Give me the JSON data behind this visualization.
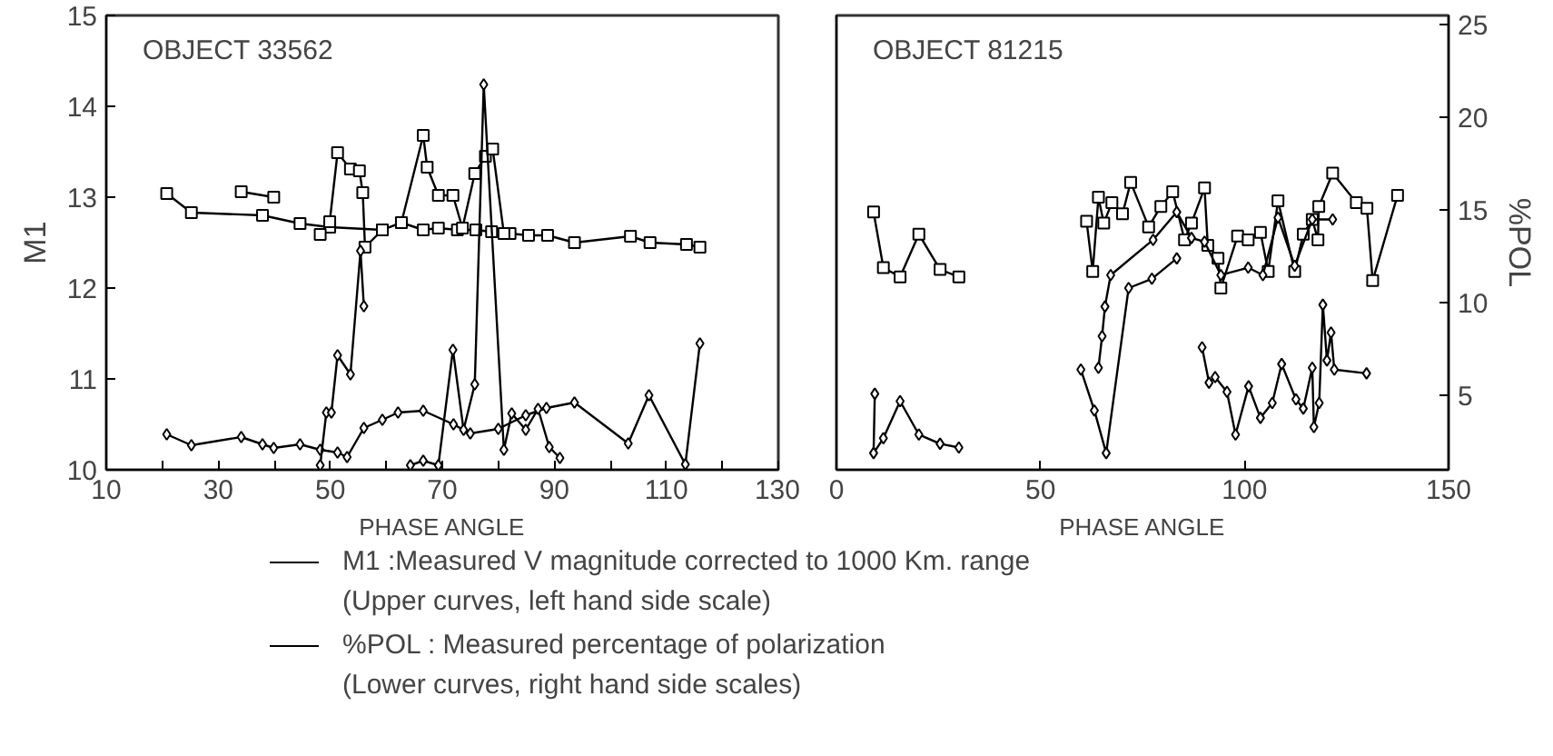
{
  "chart_data": [
    {
      "type": "line",
      "title": "OBJECT 33562",
      "xlabel": "PHASE ANGLE",
      "ylabel": "M1",
      "xlim": [
        10,
        130
      ],
      "ylim": [
        10,
        15
      ],
      "xticks": [
        10,
        {
          "value": 20,
          "label": null
        },
        30,
        {
          "value": 40,
          "label": null
        },
        50,
        {
          "value": 60,
          "label": null
        },
        70,
        {
          "value": 80,
          "label": null
        },
        90,
        {
          "value": 100,
          "label": null
        },
        110,
        {
          "value": 120,
          "label": null
        },
        130
      ],
      "yticks": [
        10,
        11,
        12,
        13,
        14,
        15
      ],
      "series": [
        {
          "color": "#000000",
          "marker": "square",
          "x": [
            20.8,
            25.2,
            37.9,
            44.6,
            49.9,
            59.3,
            62.7,
            66.6,
            69.3,
            72.7,
            76,
            78.8,
            82.1,
            85.4,
            88.8,
            93.6,
            103.6,
            107.1,
            113.6,
            116
          ],
          "values": [
            13.04,
            12.83,
            12.8,
            12.71,
            12.67,
            12.64,
            12.72,
            12.64,
            12.66,
            12.64,
            12.64,
            12.62,
            12.6,
            12.58,
            12.58,
            12.5,
            12.57,
            12.5,
            12.48,
            12.45
          ]
        },
        {
          "color": "#000000",
          "marker": "square",
          "x": [
            34.1,
            39.9
          ],
          "values": [
            13.06,
            13.0
          ]
        },
        {
          "color": "#000000",
          "marker": "square",
          "x": [
            48.2,
            49.9,
            51.3,
            53.6,
            55.2,
            55.8,
            56.2,
            59.3,
            62.7,
            66.6,
            67.3,
            69.3,
            71.9,
            73.6,
            75.8,
            77.7,
            79,
            81
          ],
          "values": [
            12.59,
            12.73,
            13.49,
            13.31,
            13.29,
            13.05,
            12.45,
            12.64,
            12.72,
            13.68,
            13.33,
            13.02,
            13.02,
            12.66,
            13.26,
            13.45,
            13.53,
            12.6
          ]
        },
        {
          "color": "#000000",
          "marker": "diamond",
          "x": [
            20.8,
            25.2,
            34.1,
            37.9,
            39.9,
            44.6,
            48.2,
            51.3,
            53,
            56,
            59.3,
            62.1,
            66.6,
            72,
            75,
            80,
            84.9,
            88.6,
            93.6,
            103.2,
            106.9,
            113.4,
            116
          ],
          "values": [
            10.39,
            10.27,
            10.36,
            10.28,
            10.24,
            10.28,
            10.22,
            10.19,
            10.14,
            10.46,
            10.55,
            10.63,
            10.65,
            10.5,
            10.4,
            10.45,
            10.6,
            10.68,
            10.74,
            10.29,
            10.82,
            10.06,
            11.39
          ]
        },
        {
          "color": "#000000",
          "marker": "diamond",
          "x": [
            48.2,
            49.3,
            50.2,
            51.3,
            53.6,
            55.4,
            56
          ],
          "values": [
            10.05,
            10.63,
            10.63,
            11.26,
            11.05,
            12.41,
            11.8
          ]
        },
        {
          "color": "#000000",
          "marker": "diamond",
          "x": [
            64.3,
            66.6,
            69.3,
            71.9,
            73.8,
            75.8,
            77.4,
            81,
            82.4,
            84.9,
            87.1,
            89.1,
            91
          ],
          "values": [
            10.05,
            10.1,
            10.05,
            11.32,
            10.44,
            10.94,
            14.24,
            10.22,
            10.62,
            10.44,
            10.67,
            10.25,
            10.13
          ]
        }
      ],
      "annotations": [
        "M1 :Measured V magnitude corrected to 1000 Km. range",
        "(Upper curves, left hand side scale)",
        "%POL : Measured percentage of polarization",
        "(Lower curves, right hand side scales)"
      ]
    },
    {
      "type": "line",
      "title": "OBJECT 81215",
      "xlabel": "PHASE ANGLE",
      "y2label": "%POL",
      "xlim": [
        0,
        150
      ],
      "y2lim": [
        1,
        25.5
      ],
      "xticks": [
        0,
        50,
        100,
        150
      ],
      "y2ticks": [
        5,
        10,
        15,
        20,
        25
      ],
      "series": [
        {
          "color": "#000000",
          "marker": "square",
          "axis": "y2",
          "x": [
            9.1,
            11.5,
            15.6,
            20.2,
            25.4,
            30
          ],
          "values": [
            14.9,
            11.9,
            11.4,
            13.7,
            11.8,
            11.4
          ]
        },
        {
          "color": "#000000",
          "marker": "diamond",
          "axis": "y2",
          "x": [
            9.4,
            9.1,
            11.5,
            15.6,
            20.2,
            25.4,
            30
          ],
          "values": [
            5.1,
            1.9,
            2.7,
            4.7,
            2.9,
            2.4,
            2.2
          ]
        },
        {
          "color": "#000000",
          "marker": "square",
          "axis": "y2",
          "x": [
            61.3,
            62.8,
            64.2,
            65.5,
            67.5,
            70.1,
            72.1,
            76.5,
            79.5,
            82.4,
            85.3,
            87,
            90.2,
            91,
            93.5,
            94.2,
            98.3,
            100.9,
            103.9,
            105.8,
            108.2,
            112.3,
            114.4,
            116.6,
            118,
            118.2,
            121.6,
            127.4,
            130,
            131.4,
            137.5
          ],
          "values": [
            14.4,
            11.7,
            15.7,
            14.3,
            15.4,
            14.8,
            16.5,
            14.1,
            15.2,
            16.0,
            13.4,
            14.3,
            16.2,
            13.1,
            12.4,
            10.8,
            13.6,
            13.4,
            13.8,
            11.7,
            15.5,
            11.7,
            13.7,
            14.5,
            13.4,
            15.2,
            17.0,
            15.4,
            15.1,
            11.2,
            15.8
          ]
        },
        {
          "color": "#000000",
          "marker": "diamond",
          "axis": "y2",
          "x": [
            64.2,
            65.1,
            65.8,
            67.2,
            77.6,
            83.4,
            87,
            90.2,
            94.2,
            100.9,
            104.5,
            108.2,
            112.3,
            116.6,
            121.6
          ],
          "values": [
            6.5,
            8.2,
            9.8,
            11.5,
            13.4,
            14.9,
            13.5,
            13.3,
            11.5,
            11.9,
            11.5,
            14.6,
            12.0,
            14.5,
            14.5
          ]
        },
        {
          "color": "#000000",
          "marker": "diamond",
          "axis": "y2",
          "x": [
            59.9,
            63.2,
            66.1,
            71.6,
            77.3,
            83.4
          ],
          "values": [
            6.4,
            4.2,
            1.9,
            10.8,
            11.3,
            12.4
          ]
        },
        {
          "color": "#000000",
          "marker": "diamond",
          "axis": "y2",
          "x": [
            89.6,
            91.3,
            92.8,
            95.7,
            97.8,
            101,
            103.9,
            106.8,
            109.1,
            112.6,
            114.4,
            116.6,
            117,
            118.3,
            119.2,
            120.2,
            121.2,
            122,
            129.9
          ],
          "values": [
            7.6,
            5.7,
            6.0,
            5.2,
            2.9,
            5.5,
            3.8,
            4.6,
            6.7,
            4.8,
            4.3,
            6.5,
            3.3,
            4.6,
            9.9,
            6.9,
            8.4,
            6.4,
            6.2
          ]
        }
      ]
    }
  ]
}
